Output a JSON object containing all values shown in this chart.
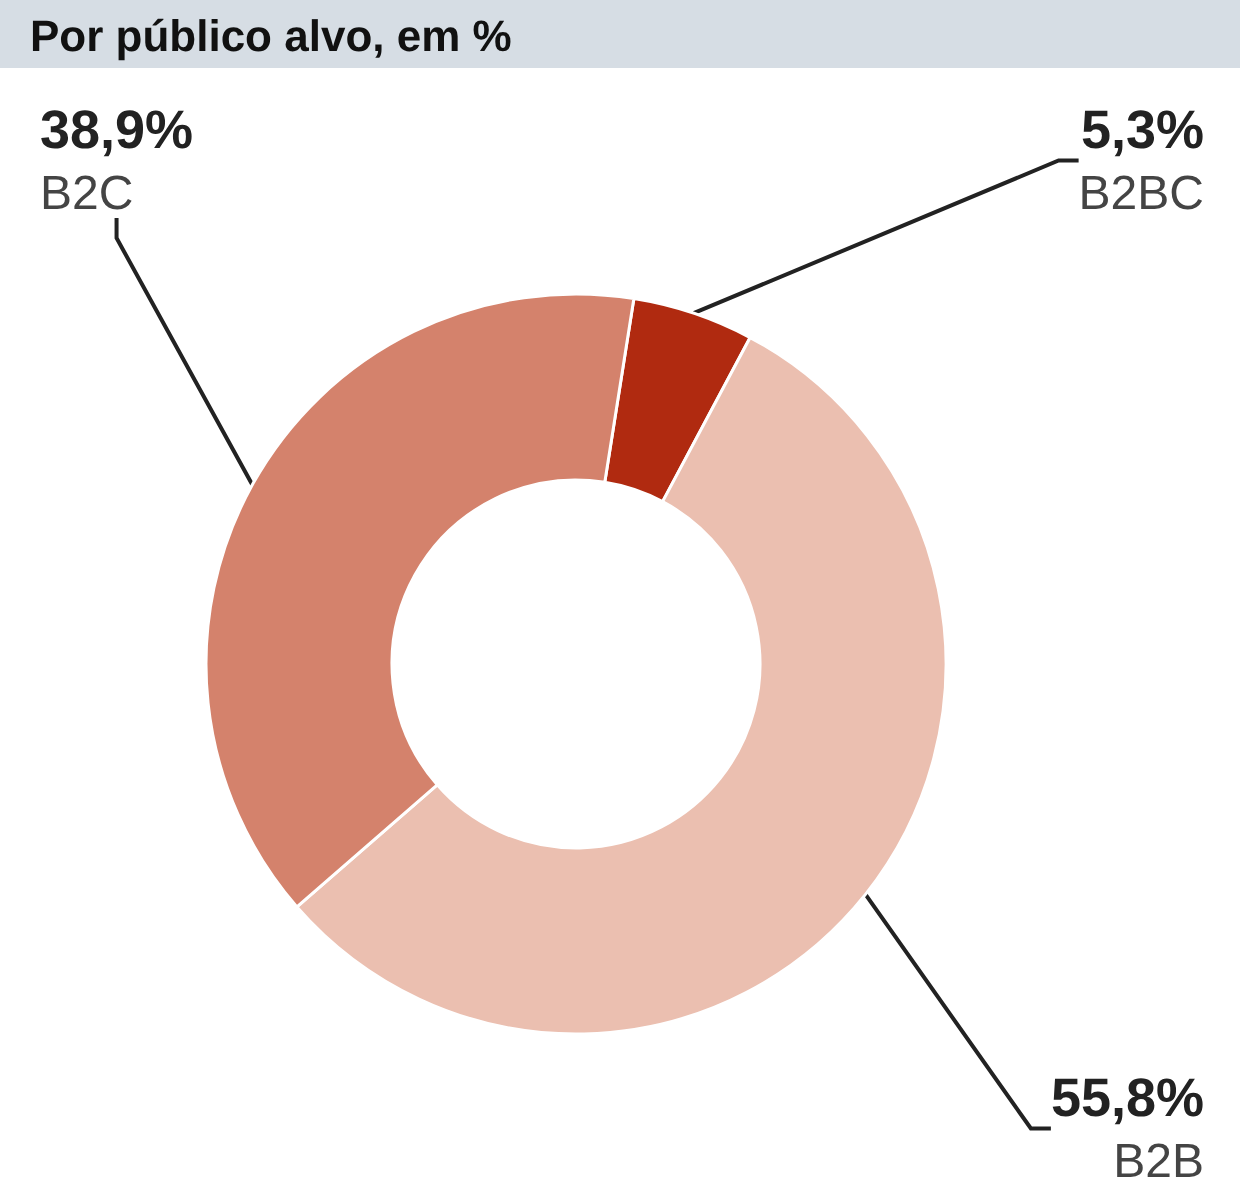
{
  "chart_data": {
    "type": "donut",
    "title": "Por público alvo, em %",
    "categories": [
      "B2BC",
      "B2B",
      "B2C"
    ],
    "values": [
      5.3,
      55.8,
      38.9
    ],
    "value_labels": [
      "5,3%",
      "55,8%",
      "38,9%"
    ],
    "colors": [
      "#b02a10",
      "#ebbfb0",
      "#d4826c"
    ],
    "legend": false
  }
}
